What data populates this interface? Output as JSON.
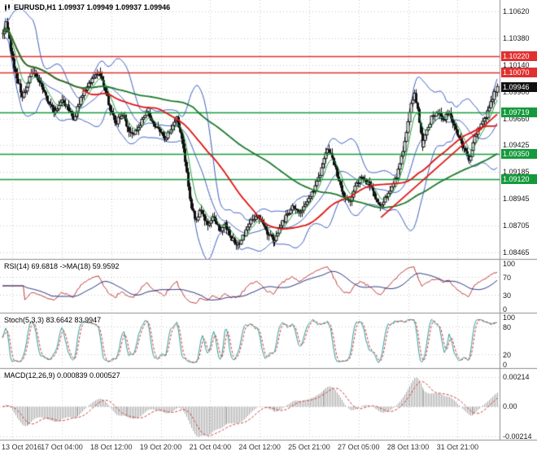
{
  "chart_data": {
    "type": "candlestick",
    "symbol": "EURUSD",
    "timeframe": "H1",
    "ohlc_display": {
      "open": "1.09937",
      "high": "1.09949",
      "low": "1.09937",
      "close": "1.09946"
    },
    "style": {
      "background": "#ffffff",
      "grid": "#c9c9c9",
      "separator": "#8e8e8e",
      "axis_text": "#1a1a1a"
    },
    "x_labels": [
      "13 Oct 2016",
      "17 Oct 04:00",
      "18 Oct 12:00",
      "19 Oct 20:00",
      "21 Oct 04:00",
      "24 Oct 12:00",
      "25 Oct 21:00",
      "27 Oct 05:00",
      "28 Oct 13:00",
      "31 Oct 21:00"
    ],
    "main": {
      "title": "EURUSD,H1 1.09937 1.09949 1.09937 1.09946",
      "price_range": [
        1.0841,
        1.1072
      ],
      "y_ticks": [
        "1.10620",
        "1.10380",
        "1.10140",
        "1.09900",
        "1.09660",
        "1.09425",
        "1.09185",
        "1.08945",
        "1.08705",
        "1.08465"
      ],
      "candle_count": 310,
      "colors": {
        "bull": "#ffffff",
        "bear": "#111111",
        "wick": "#111111",
        "bollinger": "#3d5fc0",
        "ema_fast": "#22a045",
        "ma_red": "#e01515",
        "ma_green": "#1d7a2c",
        "trendline": "#e01515"
      },
      "levels": [
        {
          "price": 1.1022,
          "label": "1.10220",
          "color": "#e03030",
          "kind": "resistance"
        },
        {
          "price": 1.1007,
          "label": "1.10070",
          "color": "#e03030",
          "kind": "resistance"
        },
        {
          "price": 1.09719,
          "label": "1.09719",
          "color": "#149a3c",
          "kind": "support"
        },
        {
          "price": 1.0935,
          "label": "1.09350",
          "color": "#149a3c",
          "kind": "support"
        },
        {
          "price": 1.0912,
          "label": "1.09120",
          "color": "#149a3c",
          "kind": "support"
        }
      ],
      "current": {
        "price": 1.09946,
        "label": "1.09946",
        "color": "#111111"
      },
      "trendline": {
        "t1": 0.765,
        "p1": 1.0878,
        "t2": 1.0,
        "p2": 1.097
      },
      "price_path": [
        [
          0.0,
          1.104
        ],
        [
          0.006,
          1.1053
        ],
        [
          0.012,
          1.104
        ],
        [
          0.02,
          1.1018
        ],
        [
          0.03,
          1.0998
        ],
        [
          0.04,
          1.0986
        ],
        [
          0.052,
          1.0998
        ],
        [
          0.062,
          1.101
        ],
        [
          0.072,
          1.1002
        ],
        [
          0.085,
          1.0988
        ],
        [
          0.095,
          1.0978
        ],
        [
          0.105,
          1.0972
        ],
        [
          0.118,
          1.0984
        ],
        [
          0.13,
          1.0976
        ],
        [
          0.142,
          1.0966
        ],
        [
          0.155,
          1.098
        ],
        [
          0.168,
          1.0992
        ],
        [
          0.18,
          1.1002
        ],
        [
          0.192,
          1.1007
        ],
        [
          0.205,
          1.0995
        ],
        [
          0.215,
          1.0977
        ],
        [
          0.228,
          1.0962
        ],
        [
          0.24,
          1.097
        ],
        [
          0.252,
          1.0958
        ],
        [
          0.265,
          1.0952
        ],
        [
          0.278,
          1.0962
        ],
        [
          0.29,
          1.0972
        ],
        [
          0.302,
          1.0965
        ],
        [
          0.315,
          1.0955
        ],
        [
          0.328,
          1.0948
        ],
        [
          0.34,
          1.0958
        ],
        [
          0.352,
          1.0968
        ],
        [
          0.362,
          1.095
        ],
        [
          0.372,
          1.092
        ],
        [
          0.38,
          1.089
        ],
        [
          0.39,
          1.0875
        ],
        [
          0.4,
          1.0885
        ],
        [
          0.412,
          1.0872
        ],
        [
          0.425,
          1.0878
        ],
        [
          0.438,
          1.0865
        ],
        [
          0.45,
          1.0872
        ],
        [
          0.462,
          1.086
        ],
        [
          0.475,
          1.0853
        ],
        [
          0.488,
          1.0862
        ],
        [
          0.5,
          1.0873
        ],
        [
          0.512,
          1.088
        ],
        [
          0.525,
          1.0872
        ],
        [
          0.538,
          1.0862
        ],
        [
          0.55,
          1.0856
        ],
        [
          0.562,
          1.087
        ],
        [
          0.575,
          1.088
        ],
        [
          0.588,
          1.0888
        ],
        [
          0.6,
          1.0882
        ],
        [
          0.612,
          1.089
        ],
        [
          0.625,
          1.09
        ],
        [
          0.638,
          1.0912
        ],
        [
          0.648,
          1.0928
        ],
        [
          0.658,
          1.094
        ],
        [
          0.668,
          1.093
        ],
        [
          0.678,
          1.0912
        ],
        [
          0.688,
          1.0898
        ],
        [
          0.7,
          1.0892
        ],
        [
          0.712,
          1.0905
        ],
        [
          0.725,
          1.0915
        ],
        [
          0.738,
          1.0908
        ],
        [
          0.75,
          1.0898
        ],
        [
          0.762,
          1.0888
        ],
        [
          0.775,
          1.0895
        ],
        [
          0.788,
          1.0905
        ],
        [
          0.8,
          1.092
        ],
        [
          0.812,
          1.0945
        ],
        [
          0.822,
          1.0972
        ],
        [
          0.832,
          1.099
        ],
        [
          0.84,
          1.0968
        ],
        [
          0.848,
          1.094
        ],
        [
          0.858,
          1.0955
        ],
        [
          0.868,
          1.0968
        ],
        [
          0.88,
          1.0972
        ],
        [
          0.892,
          1.0965
        ],
        [
          0.902,
          1.0972
        ],
        [
          0.912,
          1.096
        ],
        [
          0.922,
          1.0948
        ],
        [
          0.932,
          1.0938
        ],
        [
          0.942,
          1.093
        ],
        [
          0.952,
          1.0945
        ],
        [
          0.962,
          1.0958
        ],
        [
          0.972,
          1.0965
        ],
        [
          0.982,
          1.0972
        ],
        [
          0.99,
          1.0985
        ],
        [
          1.0,
          1.0995
        ]
      ]
    },
    "indicators": {
      "rsi": {
        "title": "RSI(14) 69.6818 ->MA(18) 59.9592",
        "period": 14,
        "ma_period": 18,
        "current_value": "69.6818",
        "current_ma": "59.9592",
        "ticks": [
          "100",
          "70",
          "30",
          "0"
        ],
        "level_lines": [
          70,
          30
        ],
        "line_color": "#c03a3a",
        "ma_color": "#23307e"
      },
      "stoch": {
        "title": "Stoch(5,3,3) 83.6642 83.9947",
        "k_period": 5,
        "d_period": 3,
        "slowing": 3,
        "current_k": "83.6642",
        "current_d": "83.9947",
        "ticks": [
          "100",
          "80",
          "20",
          "0"
        ],
        "level_lines": [
          80,
          20
        ],
        "k_color": "#2f9e9e",
        "d_color": "#d03a3a"
      },
      "macd": {
        "title": "MACD(12,26,9) 0.000839 0.000527",
        "fast": 12,
        "slow": 26,
        "signal": 9,
        "current_macd": "0.000839",
        "current_signal": "0.000527",
        "ticks": [
          "0.00214",
          "0.00",
          "-0.00214"
        ],
        "hist_color": "#a8a8a8",
        "signal_color": "#d03a3a"
      }
    }
  }
}
